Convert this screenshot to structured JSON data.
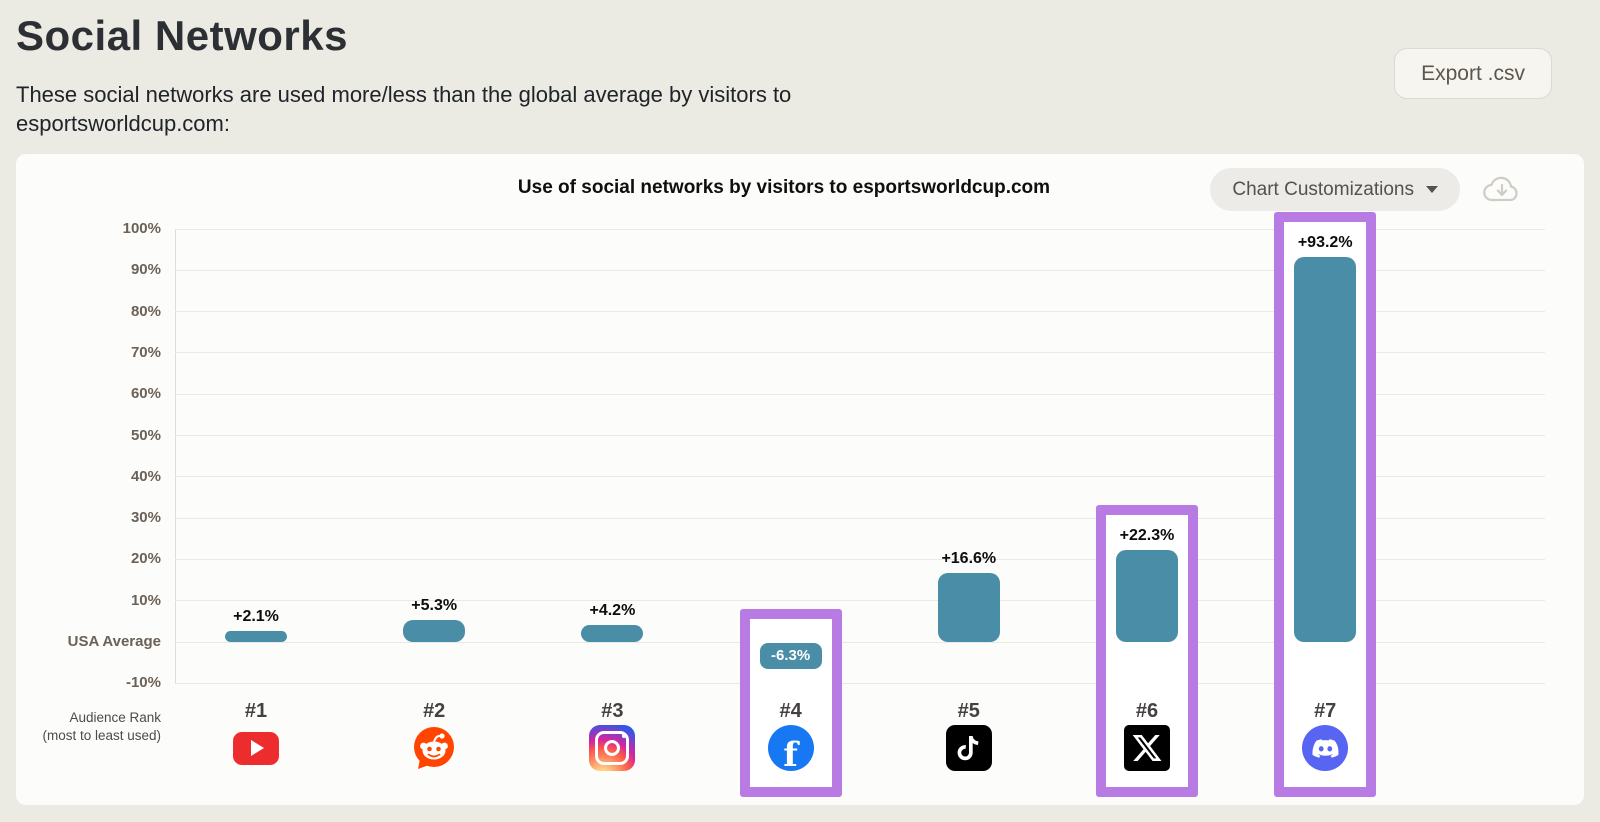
{
  "page": {
    "title": "Social Networks",
    "subtitle": "These social networks are used more/less than the global average by visitors to esportsworldcup.com:",
    "export_label": "Export .csv"
  },
  "chart_panel": {
    "customizations_label": "Chart Customizations",
    "download_icon": "cloud-download-icon"
  },
  "chart_data": {
    "type": "bar",
    "title": "Use of social networks by visitors to esportsworldcup.com",
    "y_ticks": [
      "100%",
      "90%",
      "80%",
      "70%",
      "60%",
      "50%",
      "40%",
      "30%",
      "20%",
      "10%",
      "USA Average",
      "-10%"
    ],
    "y_tick_values": [
      100,
      90,
      80,
      70,
      60,
      50,
      40,
      30,
      20,
      10,
      0,
      -10
    ],
    "ylim": [
      -10,
      100
    ],
    "grid": true,
    "baseline_label": "USA Average",
    "x_axis_label_line1": "Audience Rank",
    "x_axis_label_line2": "(most to least used)",
    "categories": [
      "#1",
      "#2",
      "#3",
      "#4",
      "#5",
      "#6",
      "#7"
    ],
    "networks": [
      "YouTube",
      "Reddit",
      "Instagram",
      "Facebook",
      "TikTok",
      "X",
      "Discord"
    ],
    "icons": [
      "youtube-icon",
      "reddit-icon",
      "instagram-icon",
      "facebook-icon",
      "tiktok-icon",
      "x-icon",
      "discord-icon"
    ],
    "values": [
      2.1,
      5.3,
      4.2,
      -6.3,
      16.6,
      22.3,
      93.2
    ],
    "labels": [
      "+2.1%",
      "+5.3%",
      "+4.2%",
      "-6.3%",
      "+16.6%",
      "+22.3%",
      "+93.2%"
    ],
    "highlighted": [
      false,
      false,
      false,
      true,
      false,
      true,
      true
    ],
    "bar_color": "#4a8da7",
    "highlight_color": "#b87be4"
  }
}
